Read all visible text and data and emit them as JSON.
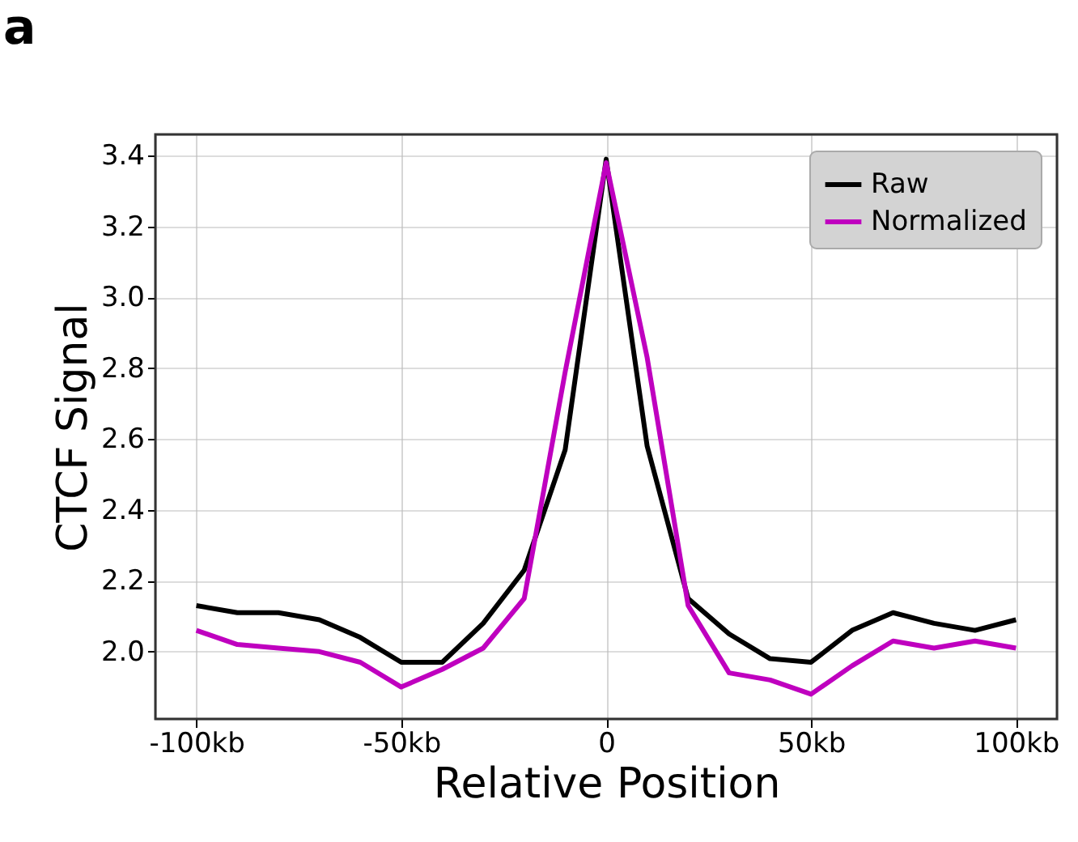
{
  "chart_data": {
    "type": "line",
    "xlabel": "Relative Position",
    "ylabel": "CTCF Signal",
    "annotations": [
      "a"
    ],
    "x": [
      -100,
      -90,
      -80,
      -70,
      -60,
      -50,
      -40,
      -30,
      -20,
      -10,
      0,
      10,
      20,
      30,
      40,
      50,
      60,
      70,
      80,
      90,
      100
    ],
    "series": [
      {
        "name": "Raw",
        "color": "#000000",
        "values": [
          2.13,
          2.11,
          2.11,
          2.09,
          2.04,
          1.97,
          1.97,
          2.08,
          2.23,
          2.57,
          3.39,
          2.58,
          2.15,
          2.05,
          1.98,
          1.97,
          2.06,
          2.11,
          2.08,
          2.06,
          2.09
        ]
      },
      {
        "name": "Normalized",
        "color": "#bf00bf",
        "values": [
          2.06,
          2.02,
          2.01,
          2.0,
          1.97,
          1.9,
          1.95,
          2.01,
          2.15,
          2.79,
          3.38,
          2.83,
          2.13,
          1.94,
          1.92,
          1.88,
          1.96,
          2.03,
          2.01,
          2.03,
          2.01
        ]
      }
    ],
    "xlim": [
      -110,
      110
    ],
    "xticks": [
      {
        "value": -100,
        "label": "-100kb"
      },
      {
        "value": -50,
        "label": "-50kb"
      },
      0,
      {
        "value": 50,
        "label": "50kb"
      },
      {
        "value": 100,
        "label": "100kb"
      }
    ],
    "ylim": [
      1.81,
      3.46
    ],
    "yticks": [
      {
        "value": 2.0,
        "label": "2.0"
      },
      {
        "value": 2.2,
        "label": "2.2"
      },
      {
        "value": 2.4,
        "label": "2.4"
      },
      {
        "value": 2.6,
        "label": "2.6"
      },
      {
        "value": 2.8,
        "label": "2.8"
      },
      {
        "value": 3.0,
        "label": "3.0"
      },
      {
        "value": 3.2,
        "label": "3.2"
      },
      {
        "value": 3.4,
        "label": "3.4"
      }
    ],
    "grid": true,
    "legend": "top right",
    "marker": "none",
    "line_style": "solid"
  }
}
